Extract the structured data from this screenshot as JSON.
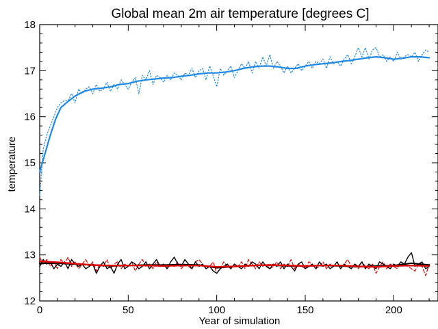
{
  "chart_data": {
    "type": "line",
    "title": "Global mean 2m air temperature [degrees C]",
    "xlabel": "Year of simulation",
    "ylabel": "temperature",
    "xlim": [
      0,
      225
    ],
    "ylim": [
      12,
      18
    ],
    "xticks": [
      0,
      50,
      100,
      150,
      200
    ],
    "yticks": [
      12,
      13,
      14,
      15,
      16,
      17,
      18
    ],
    "grid": false,
    "colors": {
      "blue": "#1e88e5",
      "red": "#e00000",
      "black": "#000000"
    },
    "series": [
      {
        "style": "blue-dotted",
        "x": [
          0,
          2,
          4,
          6,
          8,
          10,
          12,
          14,
          16,
          18,
          20,
          22,
          24,
          26,
          28,
          30,
          32,
          34,
          36,
          38,
          40,
          42,
          44,
          46,
          48,
          50,
          52,
          54,
          56,
          58,
          60,
          62,
          64,
          66,
          68,
          70,
          72,
          74,
          76,
          78,
          80,
          82,
          84,
          86,
          88,
          90,
          92,
          94,
          96,
          98,
          100,
          102,
          104,
          106,
          108,
          110,
          112,
          114,
          116,
          118,
          120,
          122,
          124,
          126,
          128,
          130,
          132,
          134,
          136,
          138,
          140,
          142,
          144,
          146,
          148,
          150,
          152,
          154,
          156,
          158,
          160,
          162,
          164,
          166,
          168,
          170,
          172,
          174,
          176,
          178,
          180,
          182,
          184,
          186,
          188,
          190,
          192,
          194,
          196,
          198,
          200,
          202,
          204,
          206,
          208,
          210,
          212,
          214,
          216,
          218,
          220
        ],
        "y": [
          14.3,
          15.3,
          15.6,
          15.8,
          16.0,
          16.2,
          16.3,
          16.35,
          16.35,
          16.5,
          16.3,
          16.6,
          16.5,
          16.6,
          16.65,
          16.5,
          16.7,
          16.55,
          16.6,
          16.75,
          16.55,
          16.7,
          16.6,
          16.8,
          16.7,
          16.6,
          16.75,
          16.85,
          16.5,
          16.9,
          16.8,
          17.0,
          16.7,
          16.9,
          16.85,
          16.75,
          16.9,
          16.8,
          16.95,
          16.9,
          16.8,
          16.95,
          16.9,
          17.05,
          16.85,
          17.0,
          17.05,
          16.8,
          17.1,
          16.9,
          16.65,
          17.05,
          16.9,
          17.0,
          17.1,
          16.85,
          17.0,
          17.15,
          17.05,
          17.2,
          16.95,
          17.2,
          17.05,
          17.3,
          17.1,
          17.35,
          17.05,
          17.2,
          17.1,
          16.95,
          17.1,
          16.95,
          17.05,
          17.15,
          17.0,
          17.1,
          17.2,
          17.05,
          17.2,
          17.15,
          17.25,
          17.05,
          17.3,
          17.15,
          17.2,
          17.1,
          17.25,
          17.35,
          17.15,
          17.3,
          17.5,
          17.3,
          17.5,
          17.25,
          17.45,
          17.5,
          17.3,
          17.35,
          17.2,
          17.3,
          17.2,
          17.4,
          17.25,
          17.3,
          17.35,
          17.3,
          17.4,
          17.2,
          17.35,
          17.45,
          17.4
        ],
        "color": "#1e88e5"
      },
      {
        "style": "blue-smooth",
        "x": [
          0,
          3,
          6,
          9,
          12,
          15,
          20,
          25,
          30,
          35,
          40,
          45,
          50,
          55,
          60,
          65,
          70,
          75,
          80,
          85,
          90,
          95,
          100,
          105,
          110,
          115,
          120,
          125,
          130,
          135,
          140,
          145,
          150,
          155,
          160,
          165,
          170,
          175,
          180,
          185,
          190,
          195,
          200,
          205,
          210,
          215,
          220
        ],
        "y": [
          14.8,
          15.2,
          15.6,
          15.95,
          16.2,
          16.3,
          16.45,
          16.55,
          16.6,
          16.62,
          16.65,
          16.7,
          16.72,
          16.77,
          16.8,
          16.82,
          16.84,
          16.85,
          16.88,
          16.9,
          16.93,
          16.95,
          16.95,
          16.97,
          17.0,
          17.05,
          17.08,
          17.1,
          17.1,
          17.08,
          17.05,
          17.05,
          17.1,
          17.13,
          17.15,
          17.17,
          17.2,
          17.22,
          17.25,
          17.28,
          17.3,
          17.28,
          17.25,
          17.27,
          17.3,
          17.3,
          17.28
        ],
        "color": "#1e88e5"
      },
      {
        "style": "red-dashed",
        "x": [
          0,
          2,
          4,
          6,
          8,
          10,
          12,
          14,
          16,
          18,
          20,
          22,
          24,
          26,
          28,
          30,
          32,
          34,
          36,
          38,
          40,
          42,
          44,
          46,
          48,
          50,
          52,
          54,
          56,
          58,
          60,
          62,
          64,
          66,
          68,
          70,
          72,
          74,
          76,
          78,
          80,
          82,
          84,
          86,
          88,
          90,
          92,
          94,
          96,
          98,
          100,
          102,
          104,
          106,
          108,
          110,
          112,
          114,
          116,
          118,
          120,
          122,
          124,
          126,
          128,
          130,
          132,
          134,
          136,
          138,
          140,
          142,
          144,
          146,
          148,
          150,
          152,
          154,
          156,
          158,
          160,
          162,
          164,
          166,
          168,
          170,
          172,
          174,
          176,
          178,
          180,
          182,
          184,
          186,
          188,
          190,
          192,
          194,
          196,
          198,
          200,
          202,
          204,
          206,
          208,
          210,
          212,
          214,
          216,
          218,
          220
        ],
        "y": [
          12.95,
          12.8,
          12.9,
          12.75,
          12.85,
          12.7,
          12.9,
          12.8,
          12.95,
          12.75,
          12.85,
          12.7,
          12.8,
          12.9,
          12.75,
          12.85,
          12.65,
          12.8,
          12.75,
          12.9,
          12.7,
          12.8,
          12.85,
          12.7,
          12.8,
          12.75,
          12.85,
          12.65,
          12.8,
          12.9,
          12.75,
          12.8,
          12.7,
          12.85,
          12.75,
          12.8,
          12.7,
          12.8,
          12.75,
          12.85,
          12.7,
          12.8,
          12.75,
          12.7,
          12.85,
          12.9,
          12.8,
          12.7,
          12.75,
          12.85,
          12.6,
          12.7,
          12.85,
          12.75,
          12.7,
          12.8,
          12.75,
          12.85,
          12.7,
          12.9,
          12.8,
          12.7,
          12.85,
          12.75,
          12.8,
          12.7,
          12.75,
          12.85,
          12.7,
          12.8,
          12.75,
          12.9,
          12.7,
          12.8,
          12.75,
          12.7,
          12.85,
          12.8,
          12.7,
          12.75,
          12.85,
          12.7,
          12.8,
          12.75,
          12.85,
          12.7,
          12.8,
          12.9,
          12.75,
          12.8,
          12.7,
          12.85,
          12.75,
          12.7,
          12.8,
          12.6,
          12.75,
          12.85,
          12.7,
          12.8,
          12.75,
          12.7,
          12.85,
          12.8,
          12.75,
          12.7,
          12.65,
          12.8,
          12.75,
          12.55,
          12.8
        ],
        "color": "#e00000"
      },
      {
        "style": "black-solid",
        "x": [
          0,
          2,
          4,
          6,
          8,
          10,
          12,
          14,
          16,
          18,
          20,
          22,
          24,
          26,
          28,
          30,
          32,
          34,
          36,
          38,
          40,
          42,
          44,
          46,
          48,
          50,
          52,
          54,
          56,
          58,
          60,
          62,
          64,
          66,
          68,
          70,
          72,
          74,
          76,
          78,
          80,
          82,
          84,
          86,
          88,
          90,
          92,
          94,
          96,
          98,
          100,
          102,
          104,
          106,
          108,
          110,
          112,
          114,
          116,
          118,
          120,
          122,
          124,
          126,
          128,
          130,
          132,
          134,
          136,
          138,
          140,
          142,
          144,
          146,
          148,
          150,
          152,
          154,
          156,
          158,
          160,
          162,
          164,
          166,
          168,
          170,
          172,
          174,
          176,
          178,
          180,
          182,
          184,
          186,
          188,
          190,
          192,
          194,
          196,
          198,
          200,
          202,
          204,
          206,
          208,
          210,
          212,
          214,
          216,
          218,
          220
        ],
        "y": [
          12.75,
          12.9,
          12.8,
          12.85,
          12.7,
          12.8,
          12.75,
          12.85,
          12.7,
          12.9,
          12.8,
          12.75,
          12.8,
          12.7,
          12.75,
          12.8,
          12.6,
          12.75,
          12.85,
          12.7,
          12.75,
          12.6,
          12.8,
          12.9,
          12.7,
          12.75,
          12.85,
          12.8,
          12.7,
          12.75,
          12.85,
          12.7,
          12.8,
          12.9,
          12.75,
          12.8,
          12.7,
          12.85,
          12.95,
          12.8,
          12.75,
          12.9,
          12.8,
          12.7,
          12.85,
          12.75,
          12.8,
          12.7,
          12.75,
          12.65,
          12.6,
          12.7,
          12.75,
          12.8,
          12.7,
          12.8,
          12.75,
          12.7,
          12.8,
          12.75,
          12.85,
          12.8,
          12.7,
          12.85,
          12.75,
          12.7,
          12.8,
          12.75,
          12.85,
          12.7,
          12.8,
          12.75,
          12.65,
          12.8,
          12.85,
          12.7,
          12.75,
          12.8,
          12.7,
          12.85,
          12.75,
          12.8,
          12.7,
          12.75,
          12.85,
          12.7,
          12.8,
          12.75,
          12.7,
          12.8,
          12.75,
          12.85,
          12.7,
          12.8,
          12.75,
          12.7,
          12.85,
          12.8,
          12.75,
          12.7,
          12.8,
          12.75,
          12.85,
          12.8,
          12.95,
          13.05,
          12.75,
          12.8,
          12.85,
          12.7,
          12.75
        ],
        "color": "#000000"
      },
      {
        "style": "black-smooth",
        "x": [
          0,
          10,
          20,
          30,
          40,
          50,
          60,
          70,
          80,
          90,
          100,
          110,
          120,
          130,
          140,
          150,
          160,
          170,
          180,
          190,
          200,
          210,
          220
        ],
        "y": [
          12.82,
          12.82,
          12.8,
          12.78,
          12.76,
          12.77,
          12.78,
          12.78,
          12.79,
          12.78,
          12.72,
          12.75,
          12.77,
          12.78,
          12.76,
          12.76,
          12.77,
          12.76,
          12.74,
          12.76,
          12.77,
          12.82,
          12.78
        ],
        "color": "#000000"
      },
      {
        "style": "red-smooth",
        "x": [
          0,
          10,
          20,
          30,
          40,
          50,
          60,
          70,
          80,
          90,
          100,
          110,
          120,
          130,
          140,
          150,
          160,
          170,
          180,
          190,
          200,
          210,
          220
        ],
        "y": [
          12.86,
          12.84,
          12.81,
          12.78,
          12.77,
          12.77,
          12.77,
          12.76,
          12.77,
          12.77,
          12.74,
          12.75,
          12.77,
          12.78,
          12.77,
          12.76,
          12.77,
          12.77,
          12.75,
          12.74,
          12.76,
          12.77,
          12.76
        ],
        "color": "#e00000"
      }
    ]
  }
}
